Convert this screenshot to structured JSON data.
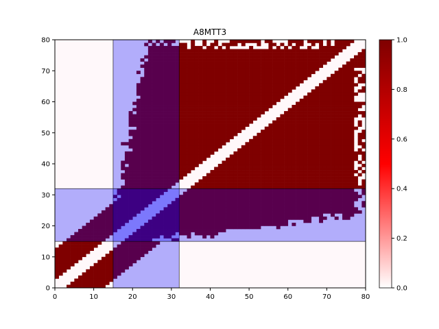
{
  "chart_data": {
    "type": "heatmap",
    "title": "A8MTT3",
    "xlabel": "",
    "ylabel": "",
    "xlim": [
      0,
      80
    ],
    "ylim": [
      0,
      80
    ],
    "x_ticks": [
      0,
      10,
      20,
      30,
      40,
      50,
      60,
      70,
      80
    ],
    "y_ticks": [
      0,
      10,
      20,
      30,
      40,
      50,
      60,
      70,
      80
    ],
    "grid": false,
    "colormap": {
      "low_color": "#ffffff",
      "mid_color": "#ff0000",
      "high_color": "#7f0000"
    },
    "colorbar": {
      "range": [
        0,
        1
      ],
      "ticks": [
        0.0,
        0.2,
        0.4,
        0.6,
        0.8,
        1.0
      ],
      "tick_labels": [
        "0.0",
        "0.2",
        "0.4",
        "0.6",
        "0.8",
        "1.0"
      ]
    },
    "matrix_size": 80,
    "value_summary": "Contact map (symmetric, 80x80). Values are ~1.0 (dark red) almost everywhere within the protein bounds except a white band along the diagonal (|i-j| <= ~2) and an unfilled lower-left / upper-right corner region outside the domain.",
    "domain_boundaries": [
      15,
      32
    ],
    "domain_overlay_color": "#0000ff",
    "domain_overlay_opacity": 0.3
  }
}
